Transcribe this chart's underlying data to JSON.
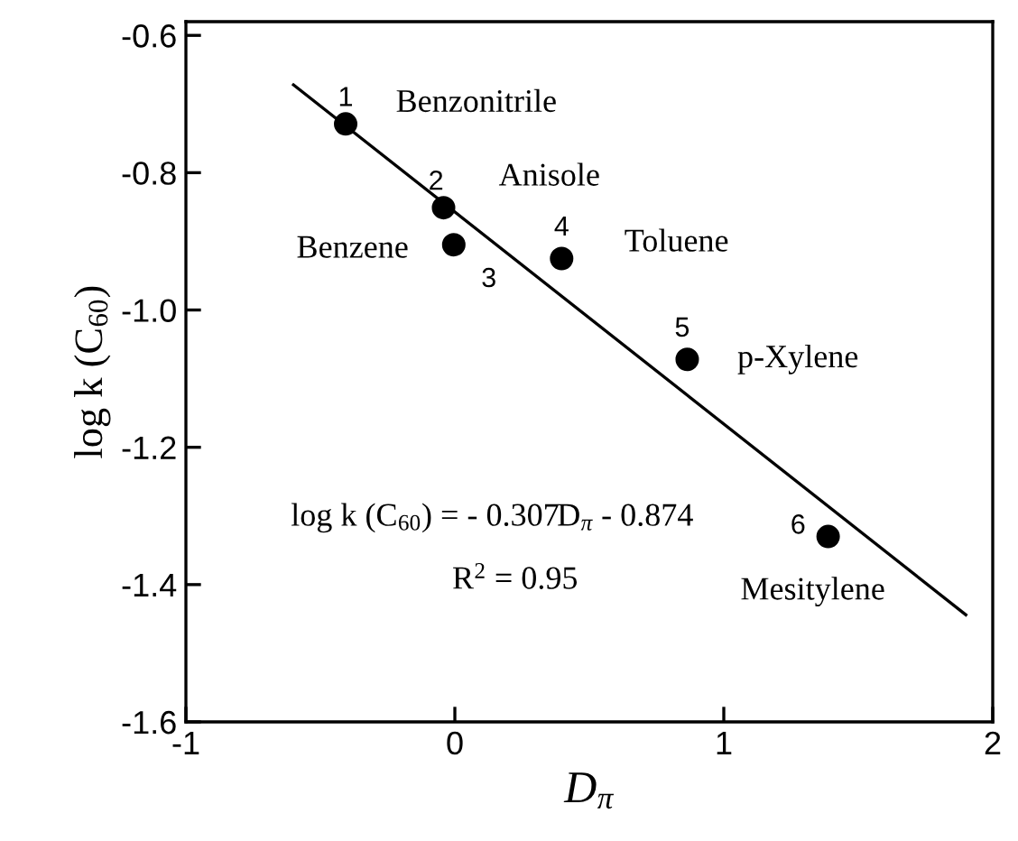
{
  "chart_data": {
    "type": "scatter",
    "xlabel": "D$_{π}$",
    "ylabel": "log k (C$_{60}$)",
    "xlim": [
      -1,
      2
    ],
    "xticks": [
      -1,
      0,
      1,
      2
    ],
    "ylim": [
      -1.6,
      -0.58
    ],
    "yticks": [
      {
        "value": -1.6,
        "label": "-1.6"
      },
      {
        "value": -1.4,
        "label": "-1.4"
      },
      {
        "value": -1.2,
        "label": "-1.2"
      },
      {
        "value": -1.0,
        "label": "-1.0"
      },
      {
        "value": -0.8,
        "label": "-0.8"
      },
      {
        "value": -0.6,
        "label": "-0.6"
      }
    ],
    "grid": false,
    "line_style": "solid",
    "series": [
      {
        "marker": "circle",
        "color": "#000000",
        "x": [
          -0.406,
          -0.042,
          -0.004,
          0.397,
          0.864,
          1.388
        ],
        "values": [
          -0.729,
          -0.851,
          -0.905,
          -0.925,
          -1.072,
          -1.33
        ]
      },
      {
        "type": "line",
        "marker": "none",
        "color": "#000000",
        "x": [
          -0.6,
          1.9
        ],
        "values": [
          -0.672,
          -1.444
        ]
      }
    ],
    "annotations": [
      {
        "text": "1",
        "x": -0.406,
        "y": -0.729
      },
      {
        "text": "2",
        "x": -0.042,
        "y": -0.851
      },
      {
        "text": "3",
        "x": -0.004,
        "y": -0.905
      },
      {
        "text": "4",
        "x": 0.397,
        "y": -0.925
      },
      {
        "text": "5",
        "x": 0.864,
        "y": -1.072
      },
      {
        "text": "6",
        "x": 1.388,
        "y": -1.33
      },
      {
        "text": "Benzonitrile",
        "x": -0.406,
        "y": -0.729
      },
      {
        "text": "Anisole",
        "x": -0.042,
        "y": -0.851
      },
      {
        "text": "Benzene",
        "x": -0.004,
        "y": -0.905
      },
      {
        "text": "Toluene",
        "x": 0.397,
        "y": -0.925
      },
      {
        "text": "p-Xylene",
        "x": 0.864,
        "y": -1.072
      },
      {
        "text": "Mesitylene",
        "x": 1.388,
        "y": -1.33
      },
      "log k (C$_{60}$) = - 0.307D$_{π}$ - 0.874",
      "R$^{2}$ = 0.95"
    ]
  }
}
